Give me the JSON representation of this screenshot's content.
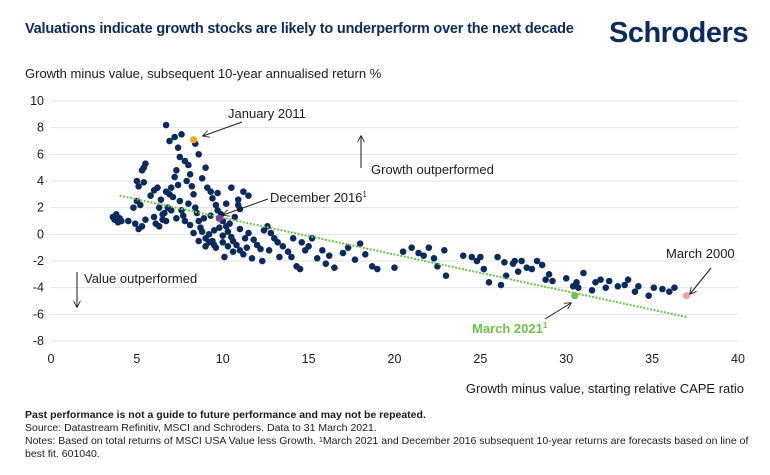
{
  "header": {
    "title": "Valuations indicate growth stocks are likely to underperform over the next decade",
    "logo": "Schroders"
  },
  "footer": {
    "disclaimer": "Past performance is not a guide to future performance and may not be repeated.",
    "source": "Source: Datastream Refinitiv, MSCI and Schroders. Data to 31 March 2021.",
    "notes_prefix": "Notes: Based on total returns of MSCI USA Value less Growth. ",
    "notes_sup": "1",
    "notes_rest": "March 2021 and December 2016 subsequent 10-year returns are forecasts based on line of best fit. 601040."
  },
  "chart_data": {
    "type": "scatter",
    "title": "Valuations indicate growth stocks are likely to underperform over the next decade",
    "xlabel": "Growth minus value, starting relative CAPE ratio",
    "ylabel": "Growth minus value, subsequent 10-year annualised return %",
    "xlim": [
      0,
      40
    ],
    "ylim": [
      -8,
      10
    ],
    "xticks": [
      0,
      5,
      10,
      15,
      20,
      25,
      30,
      35,
      40
    ],
    "yticks": [
      10,
      8,
      6,
      4,
      2,
      0,
      -2,
      -4,
      -6,
      -8
    ],
    "grid": "horizontal",
    "colors": {
      "points": "#0d2a5c",
      "trendline": "#6cc24a",
      "january_2011": "#f5a623",
      "december_2016": "#7b3fa0",
      "march_2021": "#6cc24a",
      "march_2000": "#f4a0b0"
    },
    "trendline": {
      "x": [
        4,
        37
      ],
      "y": [
        2.9,
        -6.2
      ],
      "style": "dotted"
    },
    "annotations": {
      "growth_outperformed": "Growth outperformed",
      "value_outperformed": "Value outperformed",
      "january_2011": "January 2011",
      "december_2016": "December 2016",
      "december_2016_sup": "1",
      "march_2021": "March 2021",
      "march_2021_sup": "1",
      "march_2000": "March 2000"
    },
    "highlighted_points": [
      {
        "name": "January 2011",
        "x": 8.3,
        "y": 7.1,
        "colorKey": "january_2011"
      },
      {
        "name": "December 2016",
        "x": 9.8,
        "y": 1.2,
        "colorKey": "december_2016"
      },
      {
        "name": "March 2021",
        "x": 30.5,
        "y": -4.6,
        "colorKey": "march_2021"
      },
      {
        "name": "March 2000",
        "x": 37.0,
        "y": -4.6,
        "colorKey": "march_2000"
      }
    ],
    "points": [
      [
        3.6,
        1.3
      ],
      [
        3.7,
        1.1
      ],
      [
        3.8,
        1.5
      ],
      [
        3.9,
        0.9
      ],
      [
        4.0,
        1.2
      ],
      [
        4.1,
        1.0
      ],
      [
        4.5,
        1.0
      ],
      [
        4.9,
        0.8
      ],
      [
        5.3,
        0.6
      ],
      [
        5.1,
        0.4
      ],
      [
        5.5,
        1.1
      ],
      [
        5.0,
        2.5
      ],
      [
        4.8,
        2.0
      ],
      [
        5.2,
        2.2
      ],
      [
        5.3,
        4.8
      ],
      [
        5.5,
        5.3
      ],
      [
        5.4,
        5.0
      ],
      [
        5.0,
        4.0
      ],
      [
        5.1,
        3.6
      ],
      [
        5.4,
        3.9
      ],
      [
        5.8,
        2.9
      ],
      [
        6.0,
        3.3
      ],
      [
        6.2,
        3.5
      ],
      [
        6.0,
        1.3
      ],
      [
        6.1,
        0.8
      ],
      [
        6.3,
        0.6
      ],
      [
        6.5,
        1.1
      ],
      [
        6.6,
        1.6
      ],
      [
        6.8,
        2.0
      ],
      [
        6.4,
        2.6
      ],
      [
        6.7,
        3.2
      ],
      [
        6.9,
        3.0
      ],
      [
        7.0,
        3.5
      ],
      [
        7.1,
        2.8
      ],
      [
        7.2,
        4.3
      ],
      [
        7.3,
        4.8
      ],
      [
        7.4,
        3.7
      ],
      [
        7.5,
        2.5
      ],
      [
        7.6,
        1.8
      ],
      [
        7.7,
        1.4
      ],
      [
        6.7,
        8.2
      ],
      [
        6.9,
        7.0
      ],
      [
        7.2,
        7.3
      ],
      [
        7.4,
        6.5
      ],
      [
        7.6,
        7.5
      ],
      [
        7.5,
        5.8
      ],
      [
        7.8,
        5.5
      ],
      [
        8.0,
        5.2
      ],
      [
        8.1,
        4.5
      ],
      [
        7.9,
        4.0
      ],
      [
        8.2,
        3.6
      ],
      [
        8.3,
        3.0
      ],
      [
        8.0,
        2.3
      ],
      [
        8.4,
        2.0
      ],
      [
        8.5,
        1.6
      ],
      [
        8.6,
        1.0
      ],
      [
        8.7,
        0.5
      ],
      [
        8.8,
        0.2
      ],
      [
        9.0,
        -0.3
      ],
      [
        9.2,
        -0.6
      ],
      [
        8.4,
        6.8
      ],
      [
        8.6,
        6.0
      ],
      [
        9.0,
        5.0
      ],
      [
        8.8,
        4.2
      ],
      [
        9.1,
        3.5
      ],
      [
        9.3,
        3.2
      ],
      [
        9.4,
        2.7
      ],
      [
        9.6,
        2.2
      ],
      [
        9.7,
        1.8
      ],
      [
        9.9,
        1.5
      ],
      [
        10.0,
        1.0
      ],
      [
        10.2,
        0.6
      ],
      [
        10.3,
        0.2
      ],
      [
        10.5,
        -0.2
      ],
      [
        10.6,
        -0.5
      ],
      [
        10.8,
        -0.8
      ],
      [
        11.0,
        -1.2
      ],
      [
        11.2,
        -1.5
      ],
      [
        10.1,
        -1.7
      ],
      [
        9.6,
        -1.0
      ],
      [
        9.4,
        -0.5
      ],
      [
        9.2,
        0.0
      ],
      [
        9.5,
        0.3
      ],
      [
        9.8,
        0.5
      ],
      [
        10.0,
        -0.1
      ],
      [
        10.4,
        0.8
      ],
      [
        10.7,
        1.3
      ],
      [
        11.0,
        0.4
      ],
      [
        11.3,
        -0.3
      ],
      [
        11.5,
        0.1
      ],
      [
        11.8,
        -0.4
      ],
      [
        12.0,
        -0.8
      ],
      [
        12.2,
        -1.1
      ],
      [
        12.4,
        0.3
      ],
      [
        12.6,
        0.6
      ],
      [
        12.8,
        0.1
      ],
      [
        13.0,
        -0.3
      ],
      [
        13.2,
        -0.6
      ],
      [
        11.7,
        -1.8
      ],
      [
        12.3,
        -2.0
      ],
      [
        10.9,
        2.6
      ],
      [
        11.5,
        2.9
      ],
      [
        11.2,
        3.2
      ],
      [
        10.5,
        3.5
      ],
      [
        9.7,
        3.1
      ],
      [
        10.9,
        2.2
      ],
      [
        11.0,
        1.9
      ],
      [
        10.2,
        2.3
      ],
      [
        9.3,
        1.4
      ],
      [
        8.9,
        1.2
      ],
      [
        6.3,
        2.0
      ],
      [
        6.5,
        1.5
      ],
      [
        6.7,
        1.0
      ],
      [
        7.0,
        1.8
      ],
      [
        7.3,
        1.2
      ],
      [
        7.8,
        1.0
      ],
      [
        8.1,
        0.7
      ],
      [
        8.3,
        0.1
      ],
      [
        8.6,
        -0.5
      ],
      [
        9.0,
        -0.9
      ],
      [
        9.5,
        -0.8
      ],
      [
        10.0,
        -0.6
      ],
      [
        10.3,
        -0.9
      ],
      [
        10.6,
        -1.3
      ],
      [
        11.4,
        -1.0
      ],
      [
        13.5,
        -0.9
      ],
      [
        13.8,
        -1.3
      ],
      [
        14.0,
        -1.7
      ],
      [
        14.3,
        -2.4
      ],
      [
        14.5,
        -2.6
      ],
      [
        12.7,
        -1.2
      ],
      [
        13.3,
        -1.7
      ],
      [
        14.8,
        -1.2
      ],
      [
        15.0,
        -0.9
      ],
      [
        15.5,
        -1.8
      ],
      [
        16.0,
        -2.2
      ],
      [
        16.5,
        -2.5
      ],
      [
        14.1,
        -0.3
      ],
      [
        14.6,
        -0.6
      ],
      [
        15.2,
        -0.3
      ],
      [
        15.8,
        -1.2
      ],
      [
        16.2,
        -1.6
      ],
      [
        17.0,
        -1.4
      ],
      [
        17.3,
        -1.0
      ],
      [
        17.7,
        -1.9
      ],
      [
        18.0,
        -0.7
      ],
      [
        18.3,
        -1.5
      ],
      [
        18.7,
        -2.4
      ],
      [
        19.0,
        -2.6
      ],
      [
        20.0,
        -2.5
      ],
      [
        20.5,
        -1.3
      ],
      [
        21.0,
        -1.0
      ],
      [
        21.4,
        -1.4
      ],
      [
        21.7,
        -1.6
      ],
      [
        22.0,
        -1.0
      ],
      [
        22.3,
        -1.8
      ],
      [
        22.9,
        -1.2
      ],
      [
        24.0,
        -1.6
      ],
      [
        24.5,
        -1.7
      ],
      [
        25.0,
        -1.7
      ],
      [
        26.0,
        -1.7
      ],
      [
        26.4,
        -2.1
      ],
      [
        26.9,
        -2.2
      ],
      [
        27.4,
        -2.0
      ],
      [
        28.0,
        -2.6
      ],
      [
        28.3,
        -2.0
      ],
      [
        28.6,
        -2.3
      ],
      [
        29.2,
        -3.5
      ],
      [
        30.0,
        -3.3
      ],
      [
        30.4,
        -3.9
      ],
      [
        30.6,
        -3.6
      ],
      [
        31.0,
        -2.9
      ],
      [
        32.0,
        -3.4
      ],
      [
        32.5,
        -3.5
      ],
      [
        33.0,
        -3.9
      ],
      [
        33.6,
        -3.4
      ],
      [
        34.2,
        -3.9
      ],
      [
        35.1,
        -4.0
      ],
      [
        35.6,
        -4.1
      ],
      [
        36.3,
        -4.0
      ],
      [
        27.0,
        -2.0
      ],
      [
        27.7,
        -2.5
      ],
      [
        29.0,
        -3.0
      ],
      [
        30.7,
        -4.0
      ],
      [
        31.7,
        -3.6
      ],
      [
        32.3,
        -4.0
      ],
      [
        33.4,
        -3.8
      ],
      [
        34.0,
        -4.3
      ],
      [
        34.8,
        -4.6
      ],
      [
        36.0,
        -4.3
      ],
      [
        23.0,
        -3.1
      ],
      [
        22.5,
        -2.4
      ],
      [
        25.5,
        -3.6
      ],
      [
        24.8,
        -2.0
      ],
      [
        26.5,
        -3.1
      ],
      [
        27.2,
        -2.8
      ],
      [
        25.2,
        -2.6
      ],
      [
        26.2,
        -3.8
      ],
      [
        28.8,
        -3.4
      ],
      [
        31.5,
        -4.2
      ]
    ]
  }
}
